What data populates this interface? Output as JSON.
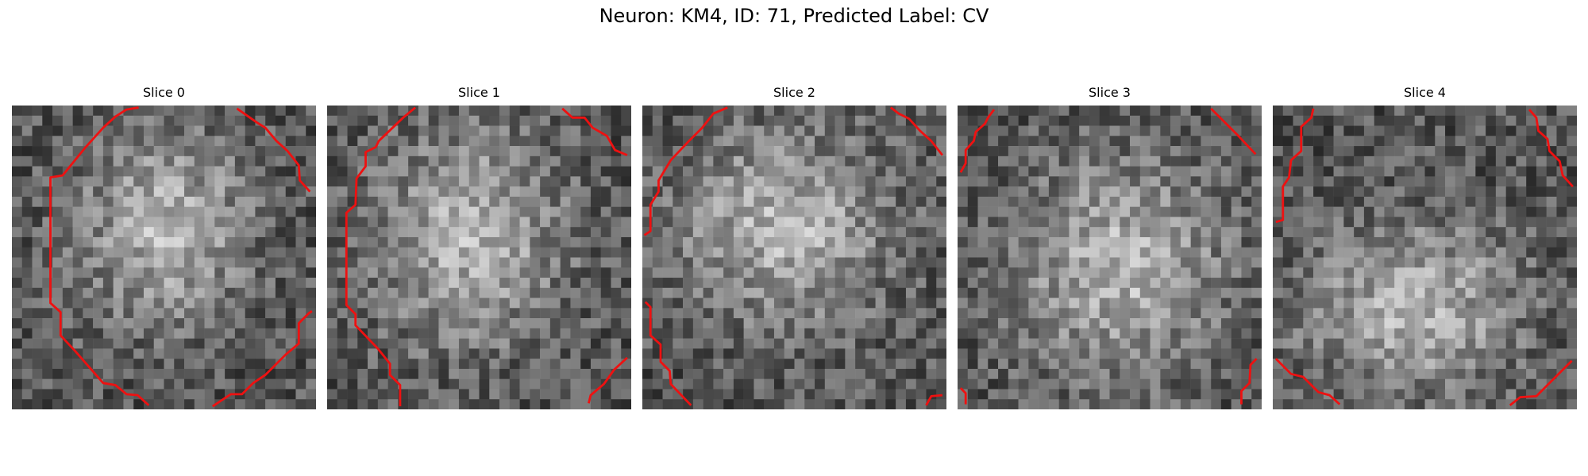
{
  "figure": {
    "title": "Neuron: KM4, ID: 71, Predicted Label: CV",
    "contour_color": "#ee1111",
    "colormap": "gray"
  },
  "panels": [
    {
      "title": "Slice 0",
      "seed": 11
    },
    {
      "title": "Slice 1",
      "seed": 23
    },
    {
      "title": "Slice 2",
      "seed": 37
    },
    {
      "title": "Slice 3",
      "seed": 53
    },
    {
      "title": "Slice 4",
      "seed": 71
    }
  ]
}
